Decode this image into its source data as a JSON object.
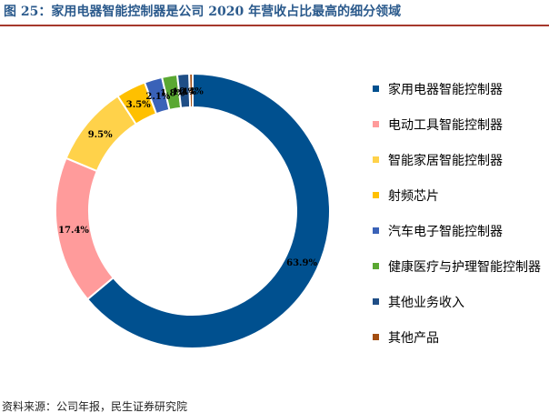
{
  "figure": {
    "title": "图 25：家用电器智能控制器是公司 2020 年营收占比最高的细分领域",
    "source": "资料来源：公司年报，民生证券研究院"
  },
  "chart_data": {
    "type": "pie",
    "style": "donut",
    "legend_position": "right",
    "categories": [
      "家用电器智能控制器",
      "电动工具智能控制器",
      "智能家居智能控制器",
      "射频芯片",
      "汽车电子智能控制器",
      "健康医疗与护理智能控制器",
      "其他业务收入",
      "其他产品"
    ],
    "values": [
      63.9,
      17.4,
      9.5,
      3.5,
      2.1,
      1.8,
      1.4,
      0.4
    ],
    "data_labels": [
      "63.9%",
      "17.4%",
      "9.5%",
      "3.5%",
      "2.1%",
      "1.8%",
      "1.4%",
      "0.4%"
    ],
    "colors": [
      "#00508f",
      "#ff9b9b",
      "#ffd24a",
      "#ffc000",
      "#3a62b8",
      "#5aa832",
      "#1f4e86",
      "#a34d10"
    ]
  }
}
